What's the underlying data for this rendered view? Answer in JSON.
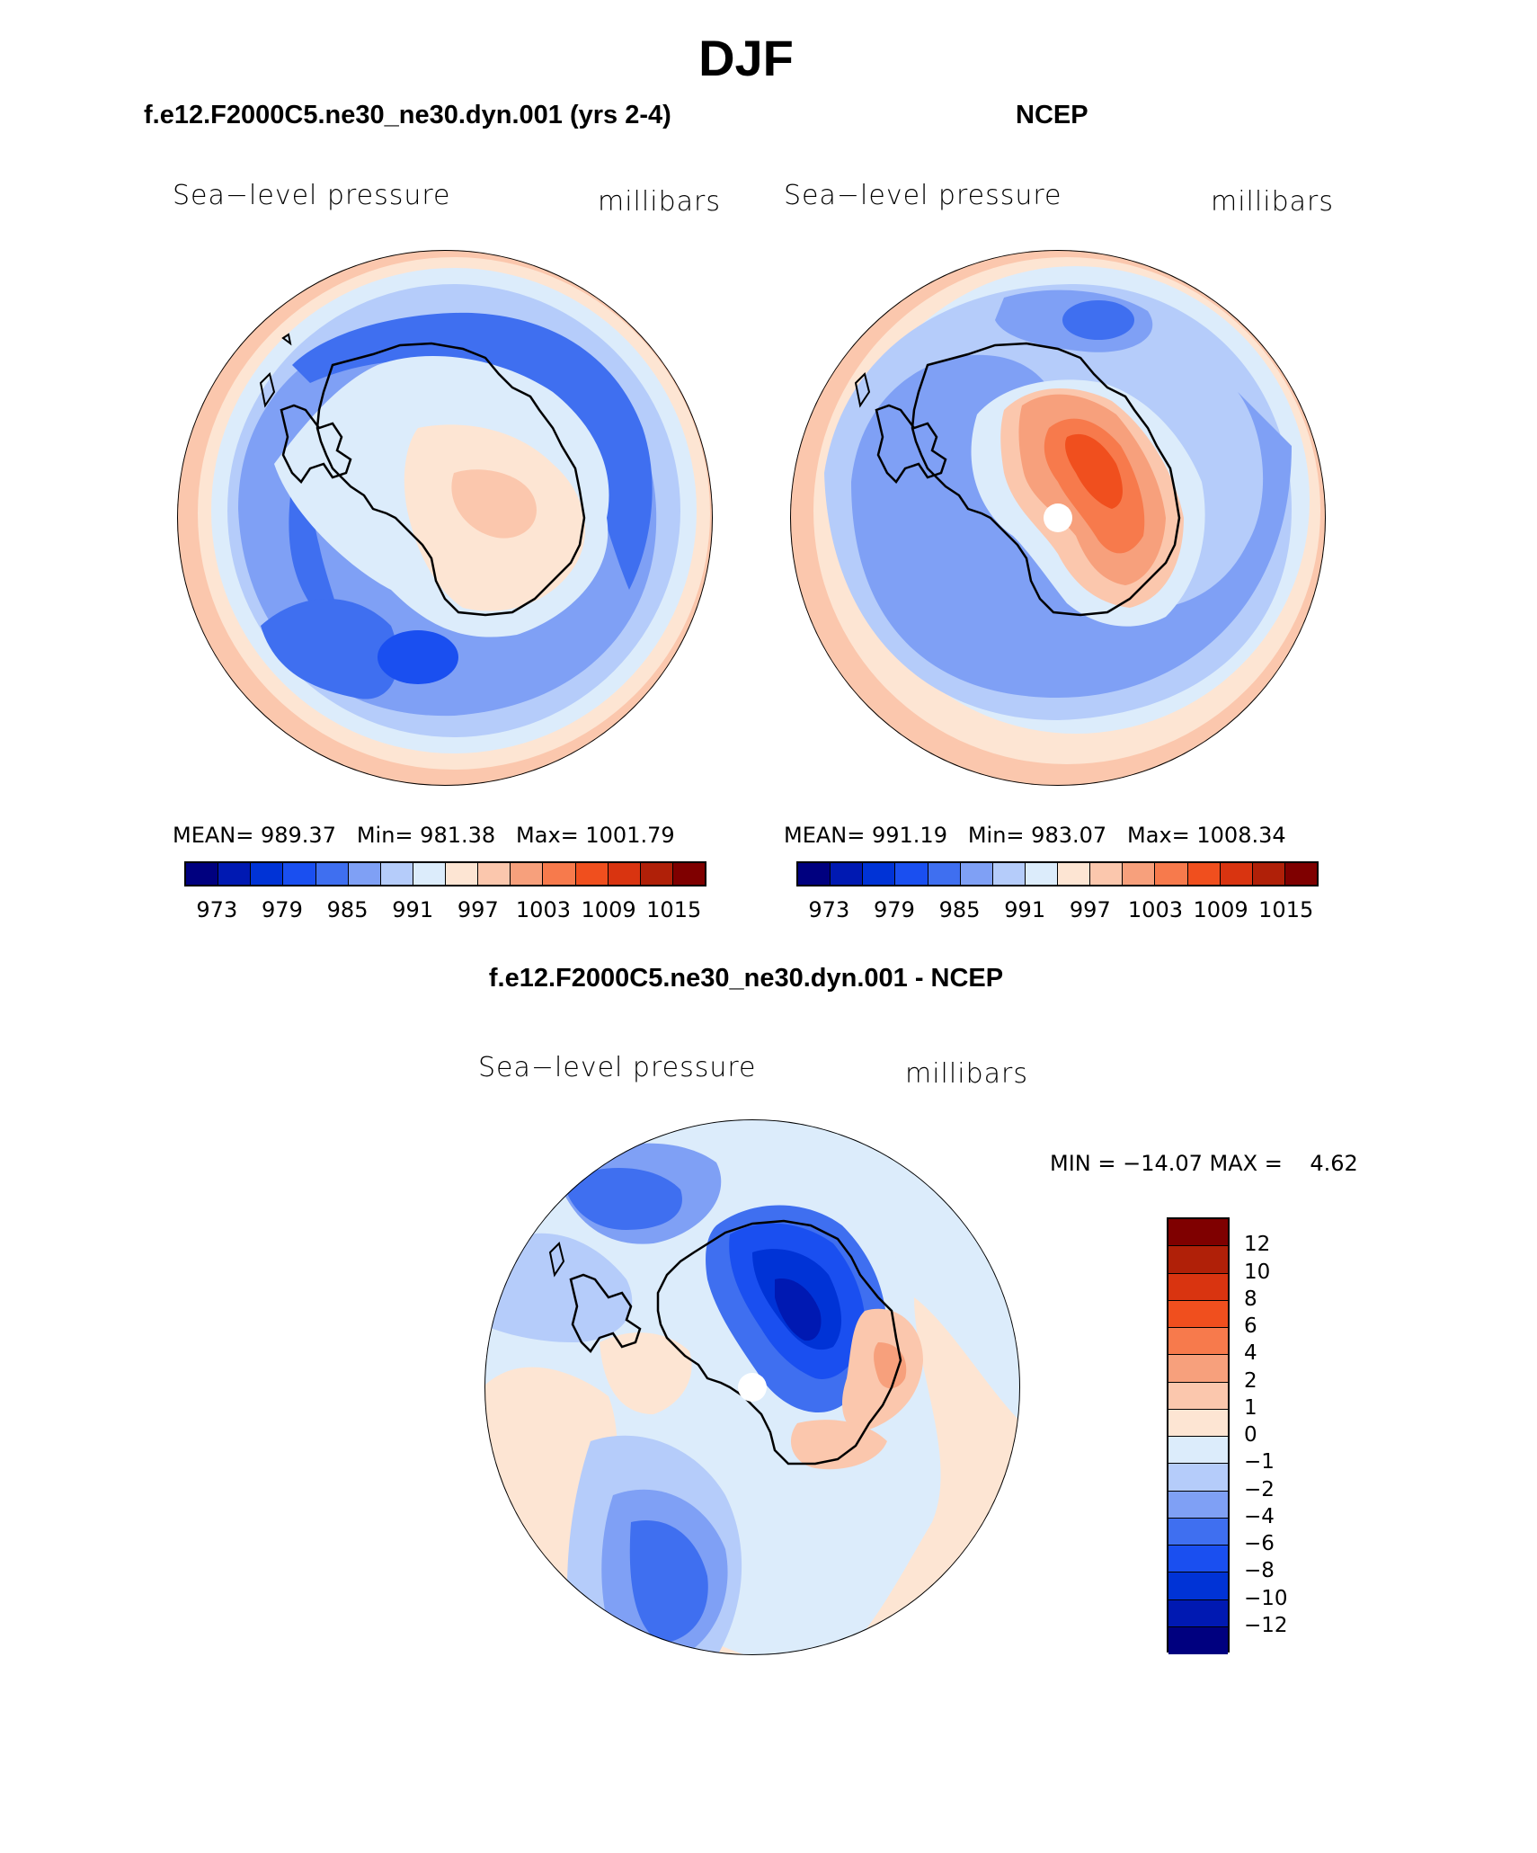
{
  "title": "DJF",
  "panels": [
    {
      "id": "model",
      "title": "f.e12.F2000C5.ne30_ne30.dyn.001 (yrs 2-4)",
      "variable": "Sea−level pressure",
      "units": "millibars",
      "stats": "MEAN= 989.37   Min= 981.38   Max= 1001.79"
    },
    {
      "id": "obs",
      "title": "NCEP",
      "variable": "Sea−level pressure",
      "units": "millibars",
      "stats": "MEAN= 991.19   Min= 983.07   Max= 1008.34"
    }
  ],
  "colorbar": {
    "colors": [
      "#00007f",
      "#0019b2",
      "#0033d6",
      "#1a4ff0",
      "#3f6ff0",
      "#7fa0f5",
      "#b5ccfa",
      "#dcecfb",
      "#fde5d3",
      "#fbc7ad",
      "#f7a07c",
      "#f77a4c",
      "#f04f1e",
      "#d93410",
      "#b02008",
      "#7f0000"
    ],
    "tick_labels": [
      "973",
      "979",
      "985",
      "991",
      "997",
      "1003",
      "1009",
      "1015"
    ]
  },
  "diff": {
    "title": "f.e12.F2000C5.ne30_ne30.dyn.001 - NCEP",
    "variable": "Sea−level pressure",
    "units": "millibars",
    "minmax": "MIN = −14.07 MAX =    4.62",
    "colors": [
      "#7f0000",
      "#b02008",
      "#d93410",
      "#f04f1e",
      "#f77a4c",
      "#f7a07c",
      "#fbc7ad",
      "#fde5d3",
      "#dcecfb",
      "#b5ccfa",
      "#7fa0f5",
      "#3f6ff0",
      "#1a4ff0",
      "#0033d6",
      "#0019b2",
      "#00007f"
    ],
    "labels": [
      "12",
      "10",
      "8",
      "6",
      "4",
      "2",
      "1",
      "0",
      "−1",
      "−2",
      "−4",
      "−6",
      "−8",
      "−10",
      "−12"
    ]
  }
}
